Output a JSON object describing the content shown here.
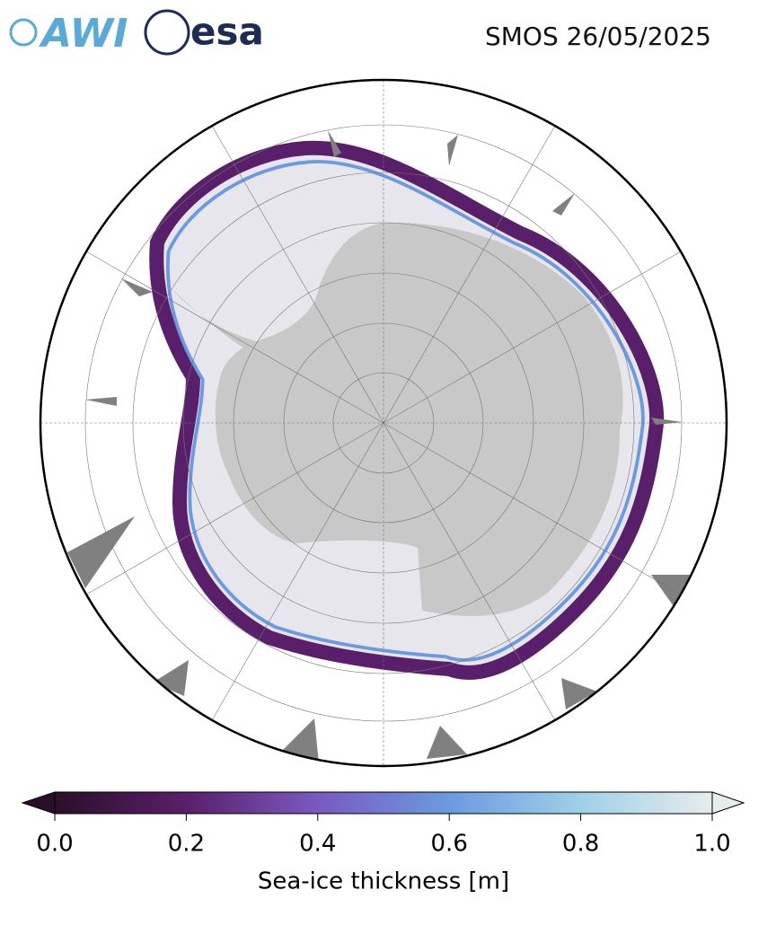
{
  "header": {
    "logos": [
      "AWI",
      "esa"
    ],
    "title": "SMOS 26/05/2025"
  },
  "colorbar": {
    "range": [
      0,
      1
    ],
    "ticks": [
      {
        "value": 0,
        "label": "0.0"
      },
      0.2,
      0.4,
      0.6,
      0.8,
      {
        "value": 1,
        "label": "1.0"
      }
    ],
    "label": "Sea-ice thickness [m]",
    "colors": [
      "#2a0f2a",
      "#5a1f6a",
      "#7a5ac0",
      "#6a9ae0",
      "#9fd0e8",
      "#e6ecec"
    ],
    "extend": "both"
  }
}
